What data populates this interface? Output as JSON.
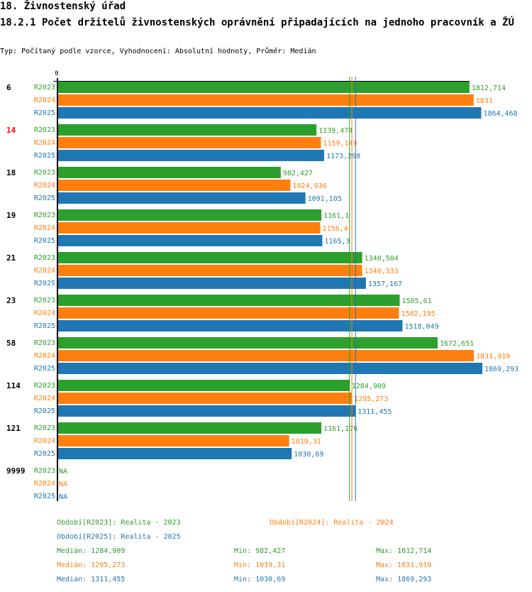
{
  "header": {
    "section_title": "18. Živnostenský úřad",
    "chart_title": "18.2.1 Počet držitelů živnostenských oprávnění připadajících na jednoho pracovník a ŽÚ",
    "subtitle": "Typ: Počítaný podle vzorce, Vyhodnocení: Absolutní hodnoty, Průměr: Medián"
  },
  "colors": {
    "R2023": "#2ca02c",
    "R2024": "#ff7f0e",
    "R2025": "#1f77b4",
    "highlight": "#ff0000",
    "axis": "#000000"
  },
  "chart_data": {
    "type": "bar",
    "orientation": "horizontal",
    "title": "18.2.1 Počet držitelů živnostenských oprávnění připadajících na jednoho pracovník a ŽÚ",
    "x_tick_labels": [
      "0"
    ],
    "xlim": [
      0,
      1900
    ],
    "categories": [
      "6",
      "14",
      "18",
      "19",
      "21",
      "23",
      "58",
      "114",
      "121",
      "9999"
    ],
    "highlighted_category": "14",
    "series": [
      {
        "name": "R2023",
        "values": [
          1812.714,
          1139.474,
          982.427,
          1161.1,
          1340.504,
          1505.61,
          1672.651,
          1284.909,
          1161.176,
          null
        ],
        "labels": [
          "1812,714",
          "1139,474",
          "982,427",
          "1161,1",
          "1340,504",
          "1505,61",
          "1672,651",
          "1284,909",
          "1161,176",
          "NA"
        ]
      },
      {
        "name": "R2024",
        "values": [
          1831,
          1159.149,
          1024.936,
          1156.4,
          1340.333,
          1502.195,
          1831.919,
          1295.273,
          1019.31,
          null
        ],
        "labels": [
          "1831",
          "1159,149",
          "1024,936",
          "1156,4",
          "1340,333",
          "1502,195",
          "1831,919",
          "1295,273",
          "1019,31",
          "NA"
        ]
      },
      {
        "name": "R2025",
        "values": [
          1864.468,
          1173.298,
          1091.105,
          1165.3,
          1357.167,
          1518.049,
          1869.293,
          1311.455,
          1030.69,
          null
        ],
        "labels": [
          "1864,468",
          "1173,298",
          "1091,105",
          "1165,3",
          "1357,167",
          "1518,049",
          "1869,293",
          "1311,455",
          "1030,69",
          "NA"
        ]
      }
    ],
    "medians": {
      "R2023": 1284.909,
      "R2024": 1295.273,
      "R2025": 1311.455
    }
  },
  "legend": {
    "periods": [
      {
        "series": "R2023",
        "text": "Období[R2023]: Realita - 2023"
      },
      {
        "series": "R2024",
        "text": "Období[R2024]: Realita - 2024"
      },
      {
        "series": "R2025",
        "text": "Období[R2025]: Realita - 2025"
      }
    ],
    "stats": [
      {
        "series": "R2023",
        "median": "Medián: 1284,909",
        "min": "Min: 982,427",
        "max": "Max: 1812,714"
      },
      {
        "series": "R2024",
        "median": "Medián: 1295,273",
        "min": "Min: 1019,31",
        "max": "Max: 1831,919"
      },
      {
        "series": "R2025",
        "median": "Medián: 1311,455",
        "min": "Min: 1030,69",
        "max": "Max: 1869,293"
      }
    ]
  }
}
